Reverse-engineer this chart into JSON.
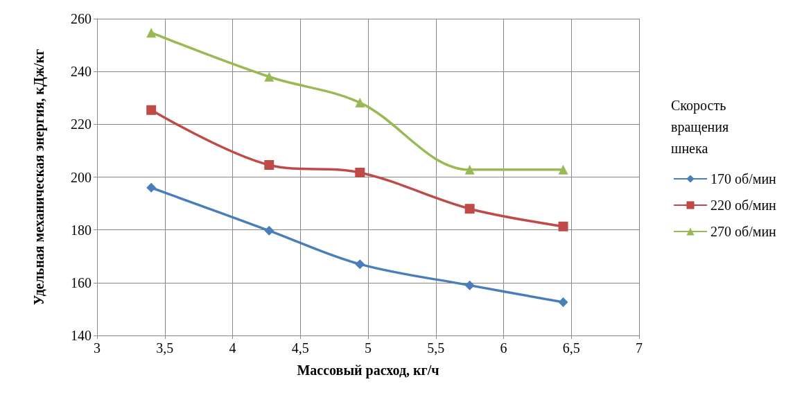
{
  "chart_data": {
    "type": "line",
    "xlabel": "Массовый расход, кг/ч",
    "ylabel": "Удельная механическая энергия, кДж/кг",
    "legend_title": "Скорость вращения шнека",
    "x": [
      3.4,
      4.27,
      4.94,
      5.75,
      6.44
    ],
    "series": [
      {
        "name": "170 об/мин",
        "color": "#4a7ebb",
        "marker": "diamond",
        "values": [
          196,
          179.7,
          167,
          159,
          152.6
        ]
      },
      {
        "name": "220 об/мин",
        "color": "#be4b48",
        "marker": "square",
        "values": [
          225.4,
          204.6,
          201.7,
          188,
          181.3
        ]
      },
      {
        "name": "270 об/мин",
        "color": "#98b954",
        "marker": "triangle",
        "values": [
          254.7,
          238,
          228.2,
          202.8,
          202.8
        ]
      }
    ],
    "xlim": [
      3,
      7
    ],
    "xticks": [
      3,
      {
        "value": 3.5,
        "label": "3,5"
      },
      4,
      {
        "value": 4.5,
        "label": "4,5"
      },
      5,
      {
        "value": 5.5,
        "label": "5,5"
      },
      6,
      {
        "value": 6.5,
        "label": "6,5"
      },
      7
    ],
    "ylim": [
      140,
      260
    ],
    "yticks": [
      140,
      160,
      180,
      200,
      220,
      240,
      260
    ],
    "grid": true,
    "legend": "right"
  }
}
